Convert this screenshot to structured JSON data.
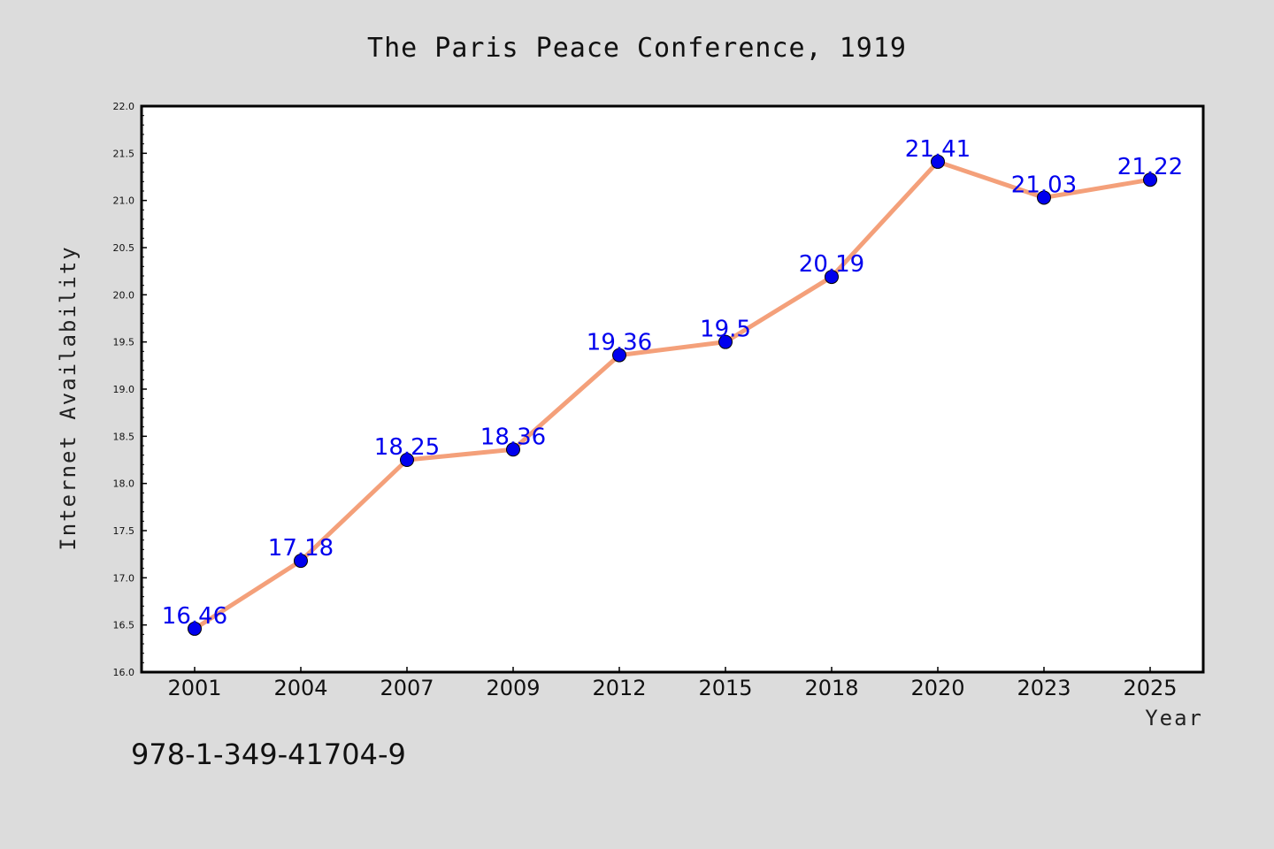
{
  "chart_data": {
    "type": "line",
    "title": "The Paris Peace Conference, 1919",
    "xlabel": "Year",
    "ylabel": "Internet Availability",
    "categories": [
      "2001",
      "2004",
      "2007",
      "2009",
      "2012",
      "2015",
      "2018",
      "2020",
      "2023",
      "2025"
    ],
    "series": [
      {
        "values": [
          16.46,
          17.18,
          18.25,
          18.36,
          19.36,
          19.5,
          20.19,
          21.41,
          21.03,
          21.22
        ],
        "labels": [
          "16.46",
          "17.18",
          "18.25",
          "18.36",
          "19.36",
          "19.5",
          "20.19",
          "21.41",
          "21.03",
          "21.22"
        ],
        "line_color": "#f4a07a",
        "marker_color": "#0000ee"
      }
    ],
    "ylim": [
      16.0,
      22.0
    ],
    "yticks": [
      "16.0",
      "16.5",
      "17.0",
      "17.5",
      "18.0",
      "18.5",
      "19.0",
      "19.5",
      "20.0",
      "20.5",
      "21.0",
      "21.5",
      "22.0"
    ],
    "grid": false,
    "legend": "none"
  },
  "footnote": "978-1-349-41704-9"
}
